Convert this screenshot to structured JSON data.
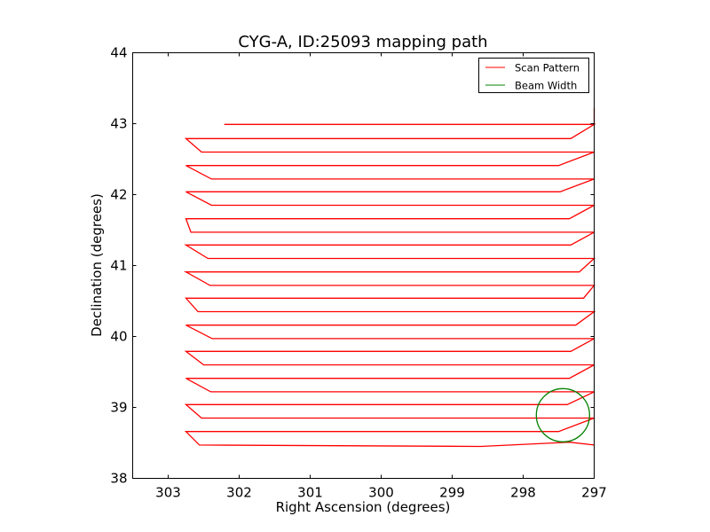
{
  "chart_data": {
    "type": "line",
    "title": "CYG-A, ID:25093 mapping path",
    "xlabel": "Right Ascension (degrees)",
    "ylabel": "Declination (degrees)",
    "xlim": [
      303.5,
      297.0
    ],
    "ylim": [
      38,
      44
    ],
    "x_inverted": true,
    "xticks": [
      303,
      302,
      301,
      300,
      299,
      298,
      297
    ],
    "yticks": [
      38,
      39,
      40,
      41,
      42,
      43,
      44
    ],
    "grid": false,
    "legend_position": "top-right",
    "colors": {
      "scan": "#ff0000",
      "beam": "#008000"
    },
    "series": [
      {
        "name": "Scan Pattern",
        "points": [
          [
            297.0,
            38.47
          ],
          [
            297.35,
            38.51
          ],
          [
            298.6,
            38.45
          ],
          [
            302.56,
            38.47
          ],
          [
            302.75,
            38.66
          ],
          [
            297.5,
            38.66
          ],
          [
            297.0,
            38.85
          ],
          [
            302.53,
            38.85
          ],
          [
            302.75,
            39.04
          ],
          [
            297.38,
            39.04
          ],
          [
            297.0,
            39.22
          ],
          [
            302.4,
            39.22
          ],
          [
            302.75,
            39.41
          ],
          [
            297.35,
            39.41
          ],
          [
            297.0,
            39.6
          ],
          [
            302.5,
            39.6
          ],
          [
            302.75,
            39.79
          ],
          [
            297.33,
            39.79
          ],
          [
            297.0,
            39.97
          ],
          [
            302.38,
            39.97
          ],
          [
            302.75,
            40.16
          ],
          [
            297.26,
            40.16
          ],
          [
            297.0,
            40.35
          ],
          [
            302.58,
            40.35
          ],
          [
            302.75,
            40.54
          ],
          [
            297.15,
            40.54
          ],
          [
            297.0,
            40.72
          ],
          [
            302.41,
            40.72
          ],
          [
            302.75,
            40.91
          ],
          [
            297.21,
            40.91
          ],
          [
            297.0,
            41.1
          ],
          [
            302.44,
            41.1
          ],
          [
            302.75,
            41.29
          ],
          [
            297.33,
            41.29
          ],
          [
            297.0,
            41.47
          ],
          [
            302.68,
            41.47
          ],
          [
            302.75,
            41.66
          ],
          [
            297.35,
            41.66
          ],
          [
            297.0,
            41.85
          ],
          [
            302.39,
            41.85
          ],
          [
            302.75,
            42.04
          ],
          [
            297.48,
            42.04
          ],
          [
            297.0,
            42.22
          ],
          [
            302.39,
            42.22
          ],
          [
            302.75,
            42.41
          ],
          [
            297.5,
            42.41
          ],
          [
            297.0,
            42.6
          ],
          [
            302.53,
            42.6
          ],
          [
            302.75,
            42.79
          ],
          [
            297.33,
            42.79
          ],
          [
            297.0,
            42.99
          ],
          [
            302.21,
            42.99
          ],
          [
            297.0,
            42.99
          ],
          [
            297.0,
            43.22
          ]
        ]
      },
      {
        "name": "Beam Width",
        "circle": {
          "center": [
            297.44,
            38.89
          ],
          "radius_deg": 0.375
        }
      }
    ]
  }
}
